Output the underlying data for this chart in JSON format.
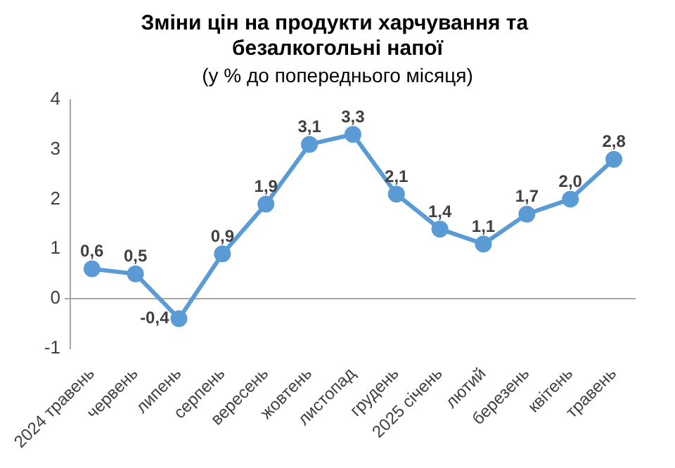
{
  "chart_data": {
    "type": "line",
    "title": "Зміни цін на продукти харчування та безалкогольні напої",
    "subtitle": "(у % до попереднього місяця)",
    "categories": [
      "2024 травень",
      "червень",
      "липень",
      "серпень",
      "вересень",
      "жовтень",
      "листопад",
      "грудень",
      "2025 січень",
      "лютий",
      "березень",
      "квітень",
      "травень"
    ],
    "series": [
      {
        "color": "#5b9bd5",
        "values": [
          0.6,
          0.5,
          -0.4,
          0.9,
          1.9,
          3.1,
          3.3,
          2.1,
          1.4,
          1.1,
          1.7,
          2.0,
          2.8
        ],
        "value_labels": [
          "0,6",
          "0,5",
          "-0,4",
          "0,9",
          "1,9",
          "3,1",
          "3,3",
          "2,1",
          "1,4",
          "1,1",
          "1,7",
          "2,0",
          "2,8"
        ]
      }
    ],
    "ylim": [
      -1,
      4
    ],
    "yticks": [
      -1,
      0,
      1,
      2,
      3,
      4
    ],
    "marker": "circle",
    "line_style": "solid",
    "legend": false
  }
}
